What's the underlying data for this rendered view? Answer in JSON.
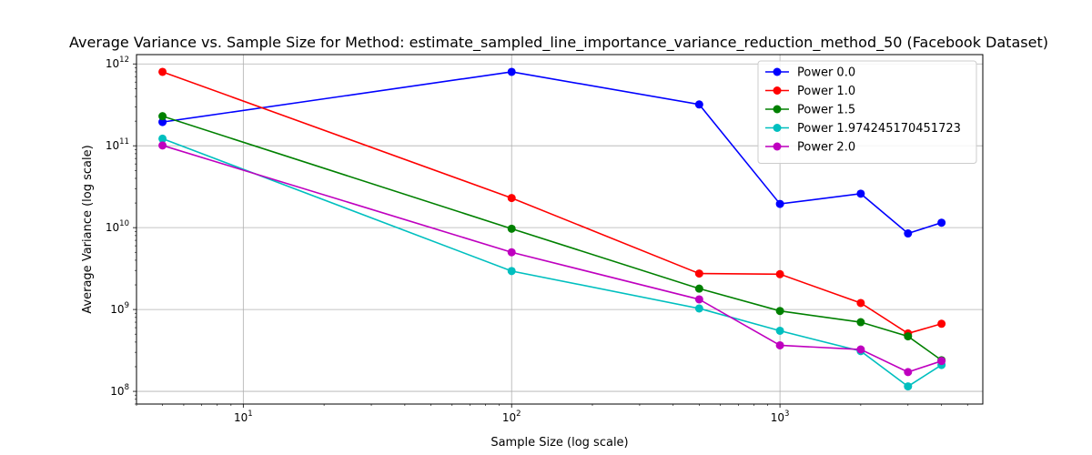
{
  "chart_data": {
    "type": "line",
    "title": "Average Variance vs. Sample Size for Method: estimate_sampled_line_importance_variance_reduction_method_50 (Facebook Dataset)",
    "xlabel": "Sample Size (log scale)",
    "ylabel": "Average Variance (log scale)",
    "x_scale": "log",
    "y_scale": "log",
    "xlim": [
      4,
      5700
    ],
    "ylim": [
      70000000,
      1300000000000
    ],
    "grid": true,
    "legend_position": "top-right",
    "x_ticks": [
      {
        "value": 10,
        "base": "10",
        "exp": "1"
      },
      {
        "value": 100,
        "base": "10",
        "exp": "2"
      },
      {
        "value": 1000,
        "base": "10",
        "exp": "3"
      }
    ],
    "y_ticks": [
      {
        "value": 100000000,
        "base": "10",
        "exp": "8"
      },
      {
        "value": 1000000000,
        "base": "10",
        "exp": "9"
      },
      {
        "value": 10000000000,
        "base": "10",
        "exp": "10"
      },
      {
        "value": 100000000000,
        "base": "10",
        "exp": "11"
      },
      {
        "value": 1000000000000,
        "base": "10",
        "exp": "12"
      }
    ],
    "x": [
      5,
      100,
      500,
      1000,
      2000,
      3000,
      4000
    ],
    "series": [
      {
        "name": "Power 0.0",
        "color": "#0000ff",
        "values": [
          195000000000,
          800000000000,
          320000000000,
          19500000000,
          26000000000,
          8500000000,
          11500000000
        ]
      },
      {
        "name": "Power 1.0",
        "color": "#ff0000",
        "values": [
          800000000000,
          23000000000,
          2750000000,
          2700000000,
          1200000000,
          510000000,
          670000000
        ]
      },
      {
        "name": "Power 1.5",
        "color": "#008000",
        "values": [
          230000000000,
          9700000000,
          1800000000,
          960000000,
          700000000,
          470000000,
          240000000
        ]
      },
      {
        "name": "Power 1.974245170451723",
        "color": "#00bfbf",
        "values": [
          122000000000,
          2950000000,
          1030000000,
          550000000,
          310000000,
          115000000,
          210000000
        ]
      },
      {
        "name": "Power 2.0",
        "color": "#bf00bf",
        "values": [
          101000000000,
          5000000000,
          1330000000,
          365000000,
          325000000,
          172000000,
          235000000
        ]
      }
    ]
  }
}
